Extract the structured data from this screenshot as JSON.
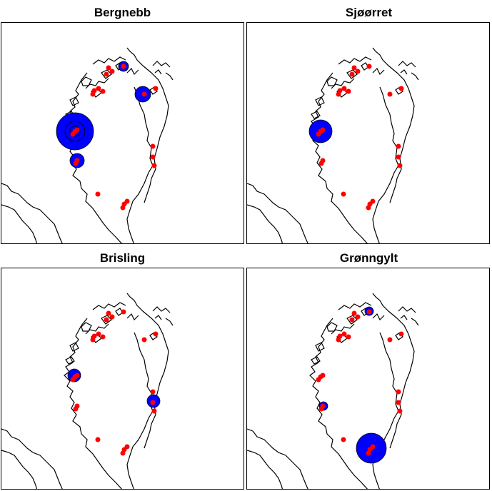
{
  "colors": {
    "catch_circle": "#0000ff",
    "station_dot": "#ff0000",
    "coastline": "#000000"
  },
  "panels": [
    {
      "title": "Bergnebb"
    },
    {
      "title": "Sjøørret"
    },
    {
      "title": "Brisling"
    },
    {
      "title": "Grønngylt"
    }
  ]
}
